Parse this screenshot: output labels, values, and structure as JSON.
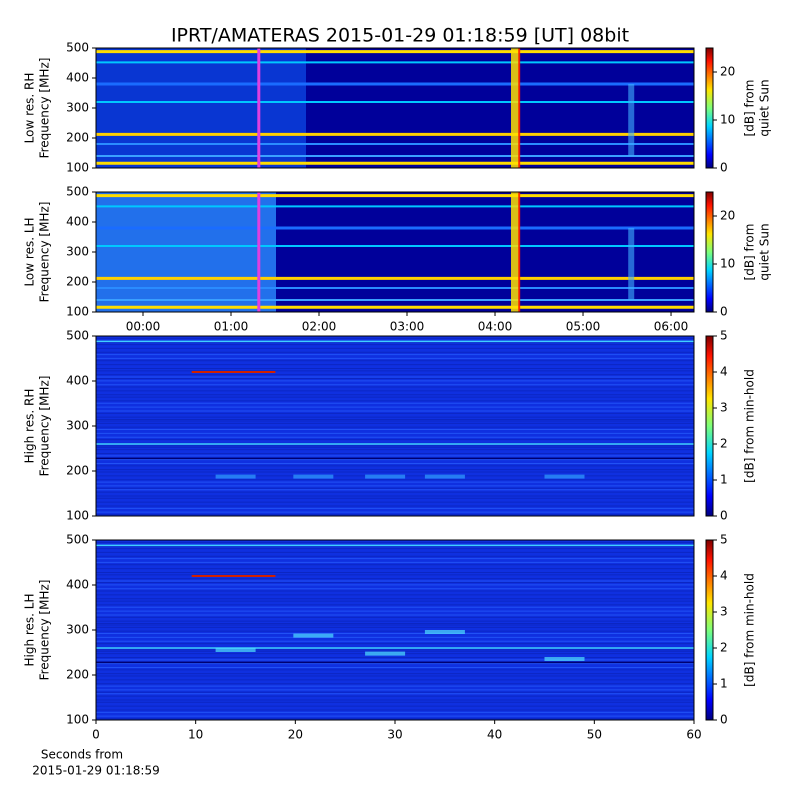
{
  "title": "IPRT/AMATERAS 2015-01-29 01:18:59 [UT]   08bit",
  "chart_data": [
    {
      "type": "spectrogram",
      "ylabel": [
        "Low res. RH",
        "Frequency [MHz]"
      ],
      "ylim": [
        100,
        500
      ],
      "yticks": [
        100,
        200,
        300,
        400,
        500
      ],
      "xlim": [
        -0.534,
        6.261
      ],
      "marker_x": 1.316,
      "marker_color": "#e040e0",
      "colorbar": {
        "label": [
          "[dB] from",
          "quiet Sun"
        ],
        "lim": [
          0,
          25
        ],
        "ticks": [
          0,
          10,
          20
        ]
      }
    },
    {
      "type": "spectrogram",
      "ylabel": [
        "Low res. LH",
        "Frequency [MHz]"
      ],
      "ylim": [
        100,
        500
      ],
      "yticks": [
        100,
        200,
        300,
        400,
        500
      ],
      "xlim": [
        -0.534,
        6.261
      ],
      "marker_x": 1.316,
      "marker_color": "#e040e0",
      "xticks": [
        {
          "value": 0,
          "label": "00:00"
        },
        {
          "value": 1,
          "label": "01:00"
        },
        {
          "value": 2,
          "label": "02:00"
        },
        {
          "value": 3,
          "label": "03:00"
        },
        {
          "value": 4,
          "label": "04:00"
        },
        {
          "value": 5,
          "label": "05:00"
        },
        {
          "value": 6,
          "label": "06:00"
        }
      ],
      "colorbar": {
        "label": [
          "[dB] from",
          "quiet Sun"
        ],
        "lim": [
          0,
          25
        ],
        "ticks": [
          0,
          10,
          20
        ]
      }
    },
    {
      "type": "spectrogram",
      "ylabel": [
        "High res. RH",
        "Frequency [MHz]"
      ],
      "ylim": [
        100,
        500
      ],
      "yticks": [
        100,
        200,
        300,
        400,
        500
      ],
      "xlim": [
        0,
        60
      ],
      "colorbar": {
        "label": [
          "[dB] from min-hold"
        ],
        "lim": [
          0,
          5
        ],
        "ticks": [
          0,
          1,
          2,
          3,
          4,
          5
        ]
      }
    },
    {
      "type": "spectrogram",
      "ylabel": [
        "High res. LH",
        "Frequency [MHz]"
      ],
      "ylim": [
        100,
        500
      ],
      "yticks": [
        100,
        200,
        300,
        400,
        500
      ],
      "xlim": [
        0,
        60
      ],
      "xticks": [
        0,
        10,
        20,
        30,
        40,
        50,
        60
      ],
      "xlabel": [
        "Seconds from",
        "2015-01-29 01:18:59"
      ],
      "colorbar": {
        "label": [
          "[dB] from min-hold"
        ],
        "lim": [
          0,
          5
        ],
        "ticks": [
          0,
          1,
          2,
          3,
          4,
          5
        ]
      }
    }
  ]
}
